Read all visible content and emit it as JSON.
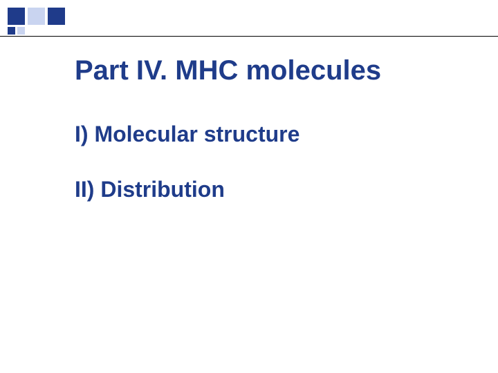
{
  "slide": {
    "title": "Part IV. MHC molecules",
    "items": [
      "I)  Molecular structure",
      "II) Distribution"
    ]
  },
  "style": {
    "title_color": "#1f3c8a",
    "item_color": "#1f3c8a",
    "accent_dark": "#1f3b8a",
    "accent_light": "#c9d4f0",
    "background_color": "#ffffff",
    "title_fontsize": 40,
    "item_fontsize": 32,
    "font_weight": "bold"
  }
}
